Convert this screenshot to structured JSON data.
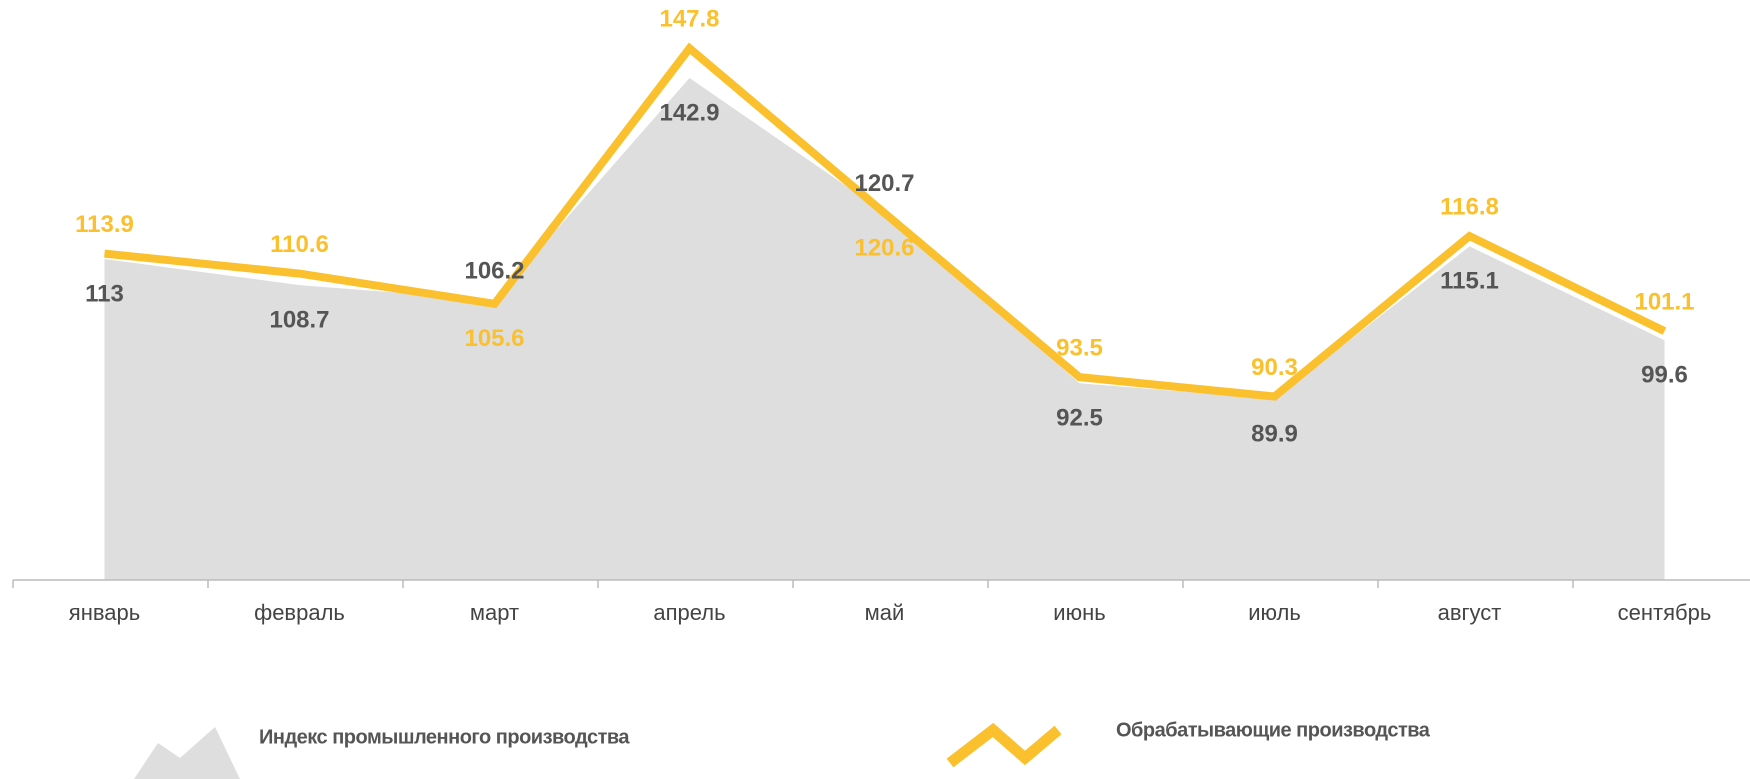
{
  "chart_data": {
    "type": "line",
    "categories": [
      "январь",
      "февраль",
      "март",
      "апрель",
      "май",
      "июнь",
      "июль",
      "август",
      "сентябрь"
    ],
    "series": [
      {
        "name": "Индекс промышленного производства",
        "type": "area",
        "color": "#dedede",
        "label_color": "#555555",
        "values": [
          113.0,
          108.7,
          106.2,
          142.9,
          120.7,
          92.5,
          89.9,
          115.1,
          99.6
        ]
      },
      {
        "name": "Обрабатывающие производства",
        "type": "line",
        "color": "#fbc02d",
        "label_color": "#fbc02d",
        "values": [
          113.9,
          110.6,
          105.6,
          147.8,
          120.6,
          93.5,
          90.3,
          116.8,
          101.1
        ]
      }
    ],
    "ylim": [
      60,
      150
    ]
  }
}
